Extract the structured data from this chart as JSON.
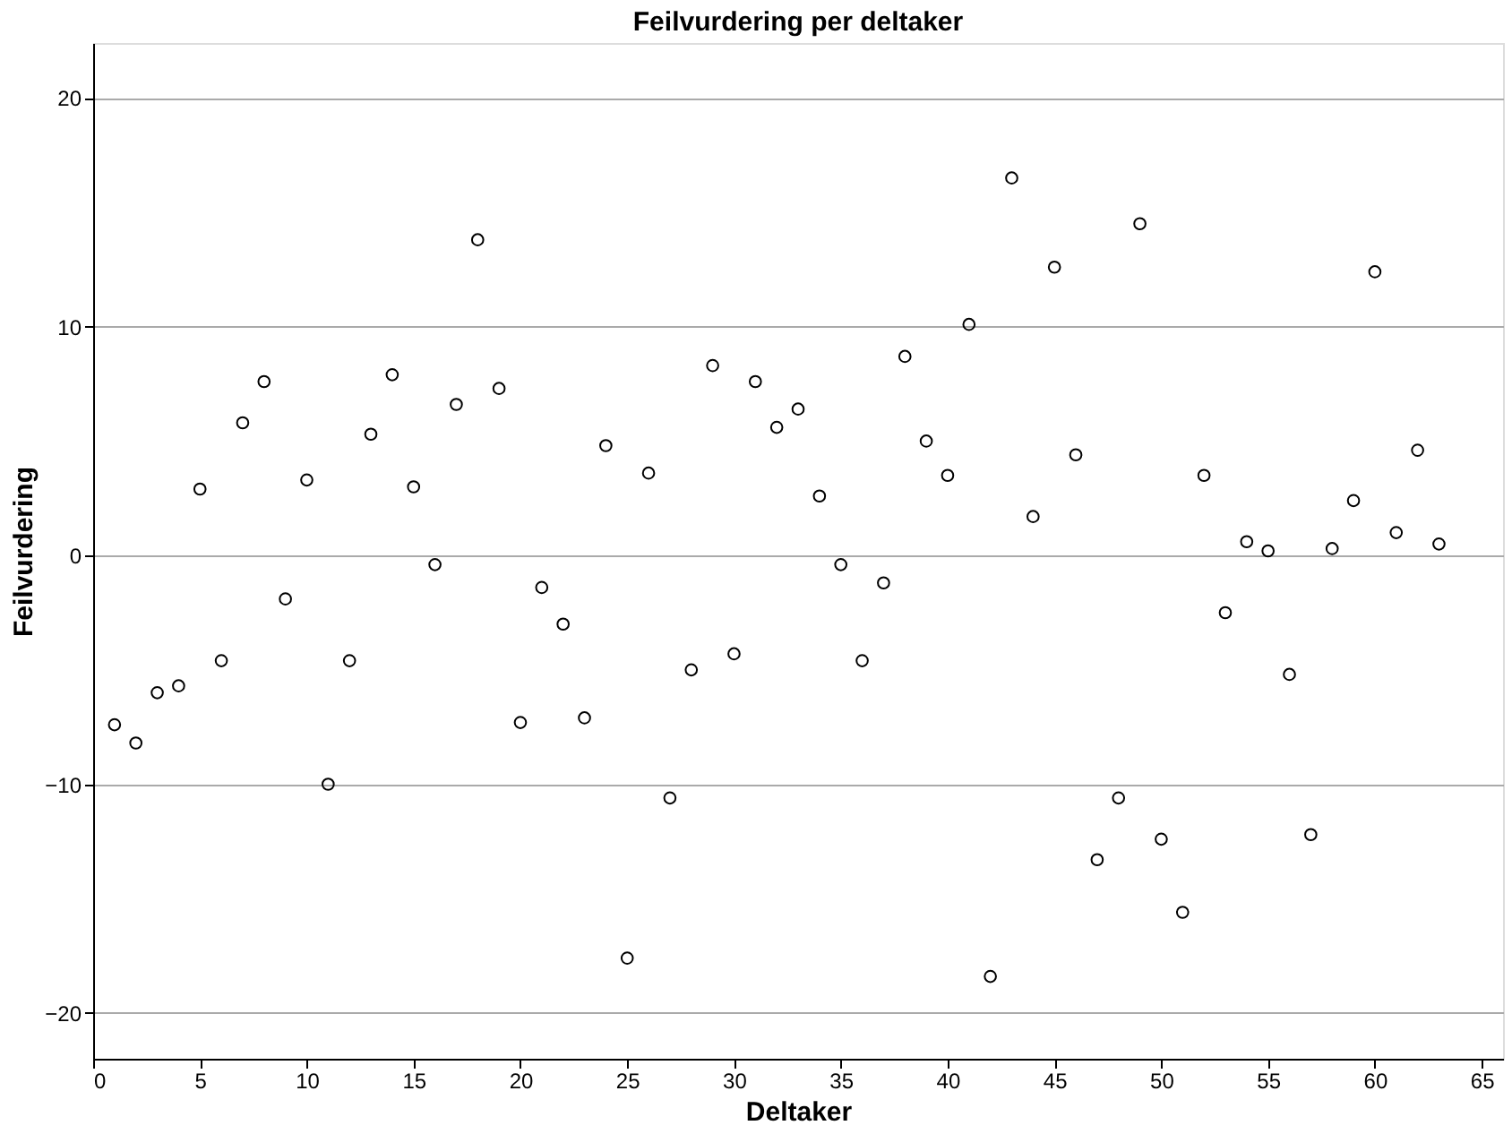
{
  "chart_data": {
    "type": "scatter",
    "title": "Feilvurdering per deltaker",
    "xlabel": "Deltaker",
    "ylabel": "Feilvurdering",
    "x": [
      1,
      2,
      3,
      4,
      5,
      6,
      7,
      8,
      9,
      10,
      11,
      12,
      13,
      14,
      15,
      16,
      17,
      18,
      19,
      20,
      21,
      22,
      23,
      24,
      25,
      26,
      27,
      28,
      29,
      30,
      31,
      32,
      33,
      34,
      35,
      36,
      37,
      38,
      39,
      40,
      41,
      42,
      43,
      44,
      45,
      46,
      47,
      48,
      49,
      50,
      51,
      52,
      53,
      54,
      55,
      56,
      57,
      58,
      59,
      60,
      61,
      62,
      63
    ],
    "series": [
      {
        "color": "#000000",
        "values": [
          -7.4,
          -8.2,
          -6.0,
          -5.7,
          2.9,
          -4.6,
          5.8,
          7.6,
          -1.9,
          3.3,
          -10.0,
          -4.6,
          5.3,
          7.9,
          3.0,
          -0.4,
          6.6,
          13.8,
          7.3,
          -7.3,
          -1.4,
          -3.0,
          -7.1,
          4.8,
          -17.6,
          3.6,
          -10.6,
          -5.0,
          8.3,
          -4.3,
          7.6,
          5.6,
          6.4,
          2.6,
          -0.4,
          -4.6,
          -1.2,
          8.7,
          5.0,
          3.5,
          10.1,
          -18.4,
          16.5,
          1.7,
          12.6,
          4.4,
          -13.3,
          -10.6,
          14.5,
          -12.4,
          -15.6,
          3.5,
          -2.5,
          0.6,
          0.2,
          -5.2,
          -12.2,
          0.3,
          2.4,
          12.4,
          1.0,
          4.6,
          0.5
        ]
      }
    ],
    "xlim": [
      0,
      66
    ],
    "ylim": [
      -22,
      22.4
    ],
    "xticks": [
      0,
      5,
      10,
      15,
      20,
      25,
      30,
      35,
      40,
      45,
      50,
      55,
      60,
      65
    ],
    "yticks": [
      -20,
      -10,
      0,
      10,
      20
    ],
    "grid": "y",
    "marker": "circle"
  }
}
